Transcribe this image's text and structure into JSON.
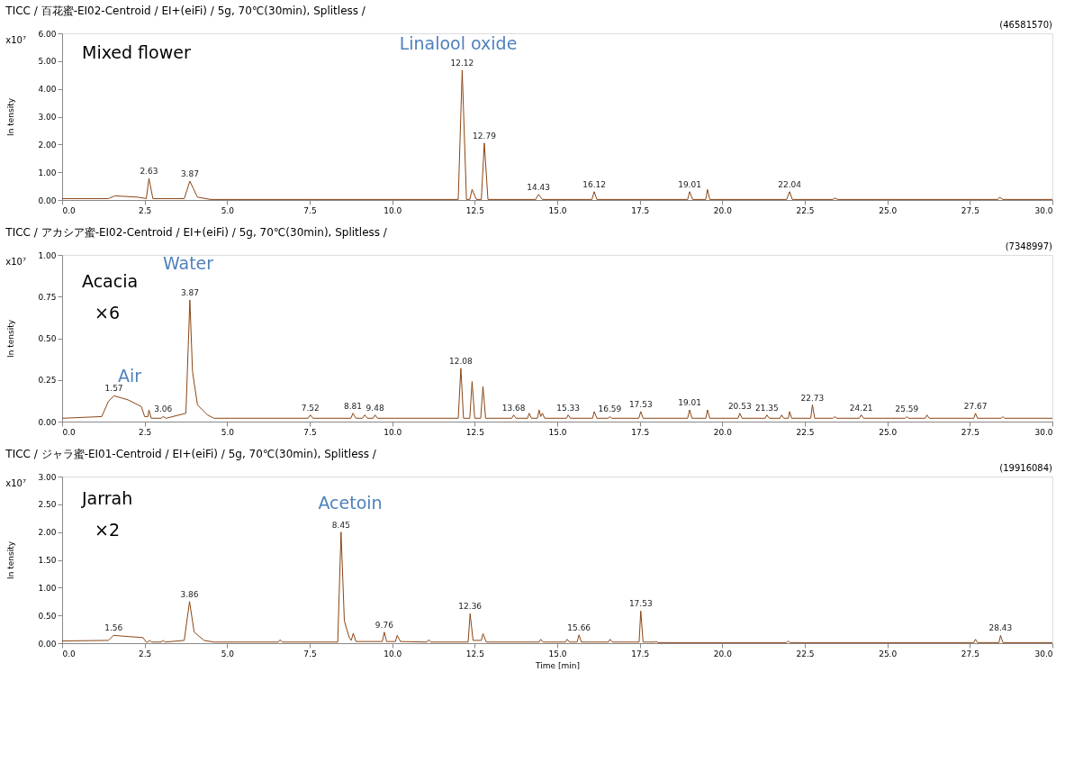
{
  "chart_data": [
    {
      "type": "line",
      "title": "TICC / 百花蜜-EI02-Centroid / EI+(eiFi) / 5g, 70℃(30min), Splitless /",
      "ylabel": "In tensity",
      "xlim": [
        0,
        30
      ],
      "ylim": [
        0,
        6
      ],
      "xticks": [
        {
          "value": 0,
          "label": "0.0"
        },
        {
          "value": 2.5,
          "label": "2.5"
        },
        {
          "value": 5,
          "label": "5.0"
        },
        {
          "value": 7.5,
          "label": "7.5"
        },
        {
          "value": 10,
          "label": "10.0"
        },
        {
          "value": 12.5,
          "label": "12.5"
        },
        {
          "value": 15,
          "label": "15.0"
        },
        {
          "value": 17.5,
          "label": "17.5"
        },
        {
          "value": 20,
          "label": "20.0"
        },
        {
          "value": 22.5,
          "label": "22.5"
        },
        {
          "value": 25,
          "label": "25.0"
        },
        {
          "value": 27.5,
          "label": "27.5"
        },
        {
          "value": 30,
          "label": "30.0"
        }
      ],
      "yticks": [
        {
          "value": 0,
          "label": "0.00"
        },
        {
          "value": 1,
          "label": "1.00"
        },
        {
          "value": 2,
          "label": "2.00"
        },
        {
          "value": 3,
          "label": "3.00"
        },
        {
          "value": 4,
          "label": "4.00"
        },
        {
          "value": 5,
          "label": "5.00"
        },
        {
          "value": 6,
          "label": "6.00"
        }
      ],
      "grid": false,
      "legend": false,
      "marker": "none",
      "series": [
        {
          "color": "#8b4513",
          "x": [
            0,
            1.4,
            1.6,
            2.3,
            2.55,
            2.63,
            2.75,
            3.7,
            3.87,
            4.1,
            4.5,
            12.0,
            12.12,
            12.25,
            12.35,
            12.42,
            12.55,
            12.7,
            12.79,
            12.9,
            14.35,
            14.43,
            14.55,
            16.05,
            16.12,
            16.2,
            18.95,
            19.01,
            19.1,
            19.5,
            19.55,
            19.62,
            21.95,
            22.04,
            22.12,
            23.35,
            23.4,
            23.5,
            28.35,
            28.4,
            28.5,
            30
          ],
          "values": [
            0.05,
            0.05,
            0.15,
            0.1,
            0.05,
            0.78,
            0.05,
            0.05,
            0.68,
            0.1,
            0.02,
            0.02,
            4.67,
            0.02,
            0.02,
            0.38,
            0.02,
            0.02,
            2.05,
            0.02,
            0.02,
            0.2,
            0.02,
            0.02,
            0.3,
            0.02,
            0.02,
            0.3,
            0.02,
            0.02,
            0.38,
            0.02,
            0.02,
            0.3,
            0.02,
            0.02,
            0.07,
            0.02,
            0.02,
            0.1,
            0.02,
            0.02
          ]
        }
      ],
      "annotations": [
        "(46581570)",
        "x10⁷",
        "Mixed flower",
        "Linalool oxide",
        {
          "text": "2.63",
          "x": 2.63,
          "y": 0.78
        },
        {
          "text": "3.87",
          "x": 3.87,
          "y": 0.68
        },
        {
          "text": "12.12",
          "x": 12.12,
          "y": 4.67
        },
        {
          "text": "12.79",
          "x": 12.79,
          "y": 2.05
        },
        {
          "text": "14.43",
          "x": 14.43,
          "y": 0.2
        },
        {
          "text": "16.12",
          "x": 16.12,
          "y": 0.3
        },
        {
          "text": "19.01",
          "x": 19.01,
          "y": 0.3
        },
        {
          "text": "22.04",
          "x": 22.04,
          "y": 0.3
        }
      ]
    },
    {
      "type": "line",
      "title": "TICC / アカシア蜜-EI02-Centroid / EI+(eiFi) / 5g, 70℃(30min), Splitless /",
      "ylabel": "In tensity",
      "xlim": [
        0,
        30
      ],
      "ylim": [
        0,
        1
      ],
      "xticks": [
        {
          "value": 0,
          "label": "0.0"
        },
        {
          "value": 2.5,
          "label": "2.5"
        },
        {
          "value": 5,
          "label": "5.0"
        },
        {
          "value": 7.5,
          "label": "7.5"
        },
        {
          "value": 10,
          "label": "10.0"
        },
        {
          "value": 12.5,
          "label": "12.5"
        },
        {
          "value": 15,
          "label": "15.0"
        },
        {
          "value": 17.5,
          "label": "17.5"
        },
        {
          "value": 20,
          "label": "20.0"
        },
        {
          "value": 22.5,
          "label": "22.5"
        },
        {
          "value": 25,
          "label": "25.0"
        },
        {
          "value": 27.5,
          "label": "27.5"
        },
        {
          "value": 30,
          "label": "30.0"
        }
      ],
      "yticks": [
        {
          "value": 0,
          "label": "0.00"
        },
        {
          "value": 0.25,
          "label": "0.25"
        },
        {
          "value": 0.5,
          "label": "0.50"
        },
        {
          "value": 0.75,
          "label": "0.75"
        },
        {
          "value": 1,
          "label": "1.00"
        }
      ],
      "grid": false,
      "legend": false,
      "marker": "none",
      "series": [
        {
          "color": "#8b4513",
          "x": [
            0,
            1.2,
            1.4,
            1.57,
            2.0,
            2.4,
            2.5,
            2.6,
            2.63,
            2.7,
            3.0,
            3.06,
            3.15,
            3.75,
            3.87,
            3.95,
            4.1,
            4.4,
            4.6,
            7.45,
            7.52,
            7.6,
            8.75,
            8.81,
            8.9,
            9.1,
            9.17,
            9.25,
            9.42,
            9.48,
            9.55,
            12.0,
            12.08,
            12.16,
            12.35,
            12.42,
            12.5,
            12.68,
            12.75,
            12.83,
            13.62,
            13.68,
            13.75,
            14.1,
            14.15,
            14.22,
            14.4,
            14.45,
            14.5,
            14.55,
            14.62,
            15.28,
            15.33,
            15.4,
            16.07,
            16.12,
            16.2,
            16.55,
            16.59,
            16.65,
            17.47,
            17.53,
            17.6,
            18.95,
            19.01,
            19.08,
            19.5,
            19.55,
            19.62,
            20.48,
            20.53,
            20.6,
            21.3,
            21.35,
            21.42,
            21.75,
            21.8,
            21.86,
            22.0,
            22.04,
            22.1,
            22.68,
            22.73,
            22.8,
            23.35,
            23.4,
            23.47,
            24.15,
            24.21,
            24.28,
            25.54,
            25.59,
            25.65,
            26.15,
            26.2,
            26.27,
            27.62,
            27.67,
            27.73,
            28.45,
            28.5,
            28.55,
            30
          ],
          "values": [
            0.02,
            0.03,
            0.12,
            0.155,
            0.13,
            0.09,
            0.03,
            0.03,
            0.07,
            0.02,
            0.02,
            0.03,
            0.02,
            0.05,
            0.73,
            0.3,
            0.1,
            0.04,
            0.02,
            0.02,
            0.04,
            0.02,
            0.02,
            0.05,
            0.02,
            0.02,
            0.04,
            0.02,
            0.02,
            0.04,
            0.02,
            0.02,
            0.32,
            0.02,
            0.02,
            0.24,
            0.02,
            0.02,
            0.21,
            0.02,
            0.02,
            0.04,
            0.02,
            0.02,
            0.05,
            0.02,
            0.02,
            0.07,
            0.03,
            0.05,
            0.02,
            0.02,
            0.04,
            0.02,
            0.02,
            0.06,
            0.02,
            0.02,
            0.03,
            0.02,
            0.02,
            0.06,
            0.02,
            0.02,
            0.07,
            0.02,
            0.02,
            0.07,
            0.02,
            0.02,
            0.05,
            0.02,
            0.02,
            0.04,
            0.02,
            0.02,
            0.04,
            0.02,
            0.02,
            0.06,
            0.02,
            0.02,
            0.1,
            0.02,
            0.02,
            0.03,
            0.02,
            0.02,
            0.04,
            0.02,
            0.02,
            0.03,
            0.02,
            0.02,
            0.04,
            0.02,
            0.02,
            0.05,
            0.02,
            0.02,
            0.03,
            0.02,
            0.02
          ]
        }
      ],
      "annotations": [
        "(7348997)",
        "x10⁷",
        "Acacia",
        "×6",
        "Water",
        "Air",
        {
          "text": "1.57",
          "x": 1.57,
          "y": 0.155
        },
        {
          "text": "3.06",
          "x": 3.06,
          "y": 0.03
        },
        {
          "text": "3.87",
          "x": 3.87,
          "y": 0.73
        },
        {
          "text": "7.52",
          "x": 7.52,
          "y": 0.04
        },
        {
          "text": "8.81",
          "x": 8.81,
          "y": 0.05
        },
        {
          "text": "9.48",
          "x": 9.48,
          "y": 0.04
        },
        {
          "text": "12.08",
          "x": 12.08,
          "y": 0.32
        },
        {
          "text": "13.68",
          "x": 13.68,
          "y": 0.04
        },
        {
          "text": "15.33",
          "x": 15.33,
          "y": 0.04
        },
        {
          "text": "16.59",
          "x": 16.59,
          "y": 0.03
        },
        {
          "text": "17.53",
          "x": 17.53,
          "y": 0.06
        },
        {
          "text": "19.01",
          "x": 19.01,
          "y": 0.07
        },
        {
          "text": "20.53",
          "x": 20.53,
          "y": 0.05
        },
        {
          "text": "21.35",
          "x": 21.35,
          "y": 0.04
        },
        {
          "text": "22.73",
          "x": 22.73,
          "y": 0.1
        },
        {
          "text": "24.21",
          "x": 24.21,
          "y": 0.04
        },
        {
          "text": "25.59",
          "x": 25.59,
          "y": 0.03
        },
        {
          "text": "27.67",
          "x": 27.67,
          "y": 0.05
        }
      ]
    },
    {
      "type": "line",
      "title": "TICC / ジャラ蜜-EI01-Centroid / EI+(eiFi) / 5g, 70℃(30min), Splitless /",
      "xlabel": "Time [min]",
      "ylabel": "In tensity",
      "xlim": [
        0,
        30
      ],
      "ylim": [
        0,
        3
      ],
      "xticks": [
        {
          "value": 0,
          "label": "0.0"
        },
        {
          "value": 2.5,
          "label": "2.5"
        },
        {
          "value": 5,
          "label": "5.0"
        },
        {
          "value": 7.5,
          "label": "7.5"
        },
        {
          "value": 10,
          "label": "10.0"
        },
        {
          "value": 12.5,
          "label": "12.5"
        },
        {
          "value": 15,
          "label": "15.0"
        },
        {
          "value": 17.5,
          "label": "17.5"
        },
        {
          "value": 20,
          "label": "20.0"
        },
        {
          "value": 22.5,
          "label": "22.5"
        },
        {
          "value": 25,
          "label": "25.0"
        },
        {
          "value": 27.5,
          "label": "27.5"
        },
        {
          "value": 30,
          "label": "30.0"
        }
      ],
      "yticks": [
        {
          "value": 0,
          "label": "0.00"
        },
        {
          "value": 0.5,
          "label": "0.50"
        },
        {
          "value": 1,
          "label": "1.00"
        },
        {
          "value": 1.5,
          "label": "1.50"
        },
        {
          "value": 2,
          "label": "2.00"
        },
        {
          "value": 2.5,
          "label": "2.50"
        },
        {
          "value": 3,
          "label": "3.00"
        }
      ],
      "grid": false,
      "legend": false,
      "marker": "none",
      "series": [
        {
          "color": "#8b4513",
          "x": [
            0,
            1.4,
            1.56,
            2.0,
            2.45,
            2.55,
            2.6,
            2.65,
            2.72,
            3.0,
            3.06,
            3.12,
            3.7,
            3.86,
            4.0,
            4.3,
            4.6,
            6.55,
            6.6,
            6.67,
            8.35,
            8.45,
            8.55,
            8.7,
            8.76,
            8.82,
            8.9,
            9.7,
            9.76,
            9.83,
            10.1,
            10.15,
            10.25,
            11.05,
            11.1,
            11.17,
            12.3,
            12.36,
            12.45,
            12.7,
            12.75,
            12.85,
            14.45,
            14.5,
            14.57,
            15.25,
            15.3,
            15.37,
            15.6,
            15.66,
            15.73,
            16.55,
            16.6,
            16.67,
            17.48,
            17.53,
            17.6,
            17.95,
            18.0,
            18.05,
            21.95,
            22.0,
            22.05,
            27.62,
            27.67,
            27.73,
            28.38,
            28.43,
            28.5,
            30
          ],
          "values": [
            0.04,
            0.05,
            0.14,
            0.12,
            0.1,
            0.02,
            0.02,
            0.05,
            0.02,
            0.02,
            0.05,
            0.02,
            0.05,
            0.75,
            0.2,
            0.05,
            0.02,
            0.02,
            0.06,
            0.02,
            0.02,
            2.0,
            0.4,
            0.1,
            0.05,
            0.18,
            0.03,
            0.03,
            0.2,
            0.03,
            0.03,
            0.14,
            0.03,
            0.02,
            0.06,
            0.02,
            0.02,
            0.53,
            0.05,
            0.05,
            0.17,
            0.02,
            0.02,
            0.07,
            0.02,
            0.02,
            0.07,
            0.02,
            0.02,
            0.15,
            0.02,
            0.02,
            0.07,
            0.02,
            0.02,
            0.58,
            0.02,
            0.02,
            0.03,
            0.01,
            0.01,
            0.04,
            0.01,
            0.01,
            0.07,
            0.01,
            0.01,
            0.14,
            0.01,
            0.01
          ]
        }
      ],
      "annotations": [
        "(19916084)",
        "x10⁷",
        "Jarrah",
        "×2",
        "Acetoin",
        {
          "text": "1.56",
          "x": 1.56,
          "y": 0.14
        },
        {
          "text": "3.86",
          "x": 3.86,
          "y": 0.75
        },
        {
          "text": "8.45",
          "x": 8.45,
          "y": 2.0
        },
        {
          "text": "9.76",
          "x": 9.76,
          "y": 0.2
        },
        {
          "text": "12.36",
          "x": 12.36,
          "y": 0.53
        },
        {
          "text": "15.66",
          "x": 15.66,
          "y": 0.15
        },
        {
          "text": "17.53",
          "x": 17.53,
          "y": 0.58
        },
        {
          "text": "28.43",
          "x": 28.43,
          "y": 0.14
        }
      ]
    }
  ]
}
